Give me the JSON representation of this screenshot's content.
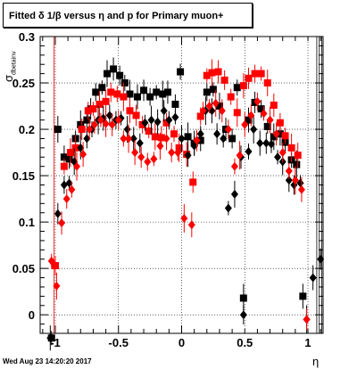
{
  "title": "Fitted δ 1/β versus η and p for Primary muon+",
  "footer": "Wed Aug 23 14:20:20 2017",
  "chart_data": {
    "type": "scatter",
    "title": "Fitted δ 1/β versus η and p for Primary muon+",
    "xlabel": "η",
    "ylabel": "σ_dbetainv",
    "xlim": [
      -1.12,
      1.12
    ],
    "ylim": [
      -0.02,
      0.3
    ],
    "xticks": [
      "-1",
      "-0.5",
      "0",
      "0.5",
      "1"
    ],
    "yticks": [
      "0",
      "0.05",
      "0.1",
      "0.15",
      "0.2",
      "0.25",
      "0.3"
    ],
    "grid": true,
    "legend": "none",
    "series": [
      {
        "marker": "square",
        "color": "#000000",
        "points": [
          [
            -1.03,
            -0.025
          ],
          [
            -0.98,
            0.2
          ],
          [
            -0.93,
            0.17
          ],
          [
            -0.89,
            0.168
          ],
          [
            -0.84,
            0.19
          ],
          [
            -0.8,
            0.205
          ],
          [
            -0.75,
            0.21
          ],
          [
            -0.72,
            0.222
          ],
          [
            -0.68,
            0.24
          ],
          [
            -0.63,
            0.245
          ],
          [
            -0.59,
            0.26
          ],
          [
            -0.54,
            0.265
          ],
          [
            -0.49,
            0.258
          ],
          [
            -0.45,
            0.25
          ],
          [
            -0.41,
            0.238
          ],
          [
            -0.35,
            0.235
          ],
          [
            -0.3,
            0.242
          ],
          [
            -0.25,
            0.235
          ],
          [
            -0.2,
            0.24
          ],
          [
            -0.15,
            0.238
          ],
          [
            -0.11,
            0.24
          ],
          [
            -0.05,
            0.227
          ],
          [
            -0.01,
            0.262
          ],
          [
            0.05,
            0.192
          ],
          [
            0.1,
            0.185
          ],
          [
            0.15,
            0.188
          ],
          [
            0.2,
            0.24
          ],
          [
            0.25,
            0.243
          ],
          [
            0.3,
            0.225
          ],
          [
            0.35,
            0.2
          ],
          [
            0.4,
            0.19
          ],
          [
            0.44,
            0.245
          ],
          [
            0.49,
            0.018
          ],
          [
            0.53,
            0.21
          ],
          [
            0.58,
            0.229
          ],
          [
            0.63,
            0.222
          ],
          [
            0.68,
            0.203
          ],
          [
            0.73,
            0.192
          ],
          [
            0.78,
            0.195
          ],
          [
            0.82,
            0.186
          ],
          [
            0.87,
            0.167
          ],
          [
            0.91,
            0.162
          ],
          [
            0.96,
            0.02
          ]
        ]
      },
      {
        "marker": "square",
        "color": "#ff0000",
        "points": [
          [
            -1.0,
            0.053
          ],
          [
            -0.93,
            0.16
          ],
          [
            -0.88,
            0.175
          ],
          [
            -0.84,
            0.18
          ],
          [
            -0.79,
            0.2
          ],
          [
            -0.74,
            0.22
          ],
          [
            -0.7,
            0.222
          ],
          [
            -0.65,
            0.227
          ],
          [
            -0.6,
            0.23
          ],
          [
            -0.56,
            0.24
          ],
          [
            -0.51,
            0.238
          ],
          [
            -0.46,
            0.235
          ],
          [
            -0.41,
            0.22
          ],
          [
            -0.36,
            0.215
          ],
          [
            -0.31,
            0.205
          ],
          [
            -0.26,
            0.198
          ],
          [
            -0.21,
            0.192
          ],
          [
            -0.16,
            0.191
          ],
          [
            -0.12,
            0.207
          ],
          [
            -0.06,
            0.195
          ],
          [
            -0.02,
            0.18
          ],
          [
            0.04,
            0.173
          ],
          [
            0.09,
            0.143
          ],
          [
            0.15,
            0.214
          ],
          [
            0.2,
            0.258
          ],
          [
            0.24,
            0.261
          ],
          [
            0.29,
            0.262
          ],
          [
            0.34,
            0.253
          ],
          [
            0.39,
            0.235
          ],
          [
            0.44,
            0.218
          ],
          [
            0.49,
            0.247
          ],
          [
            0.53,
            0.255
          ],
          [
            0.58,
            0.26
          ],
          [
            0.63,
            0.26
          ],
          [
            0.68,
            0.25
          ],
          [
            0.73,
            0.226
          ],
          [
            0.78,
            0.207
          ],
          [
            0.82,
            0.193
          ],
          [
            0.87,
            0.18
          ],
          [
            0.92,
            0.172
          ]
        ]
      },
      {
        "marker": "diamond",
        "color": "#000000",
        "points": [
          [
            -1.04,
            -0.025
          ],
          [
            -0.98,
            0.109
          ],
          [
            -0.93,
            0.14
          ],
          [
            -0.89,
            0.142
          ],
          [
            -0.85,
            0.165
          ],
          [
            -0.8,
            0.18
          ],
          [
            -0.75,
            0.19
          ],
          [
            -0.71,
            0.2
          ],
          [
            -0.66,
            0.21
          ],
          [
            -0.62,
            0.212
          ],
          [
            -0.57,
            0.215
          ],
          [
            -0.52,
            0.21
          ],
          [
            -0.48,
            0.212
          ],
          [
            -0.43,
            0.2
          ],
          [
            -0.38,
            0.19
          ],
          [
            -0.33,
            0.185
          ],
          [
            -0.29,
            0.207
          ],
          [
            -0.24,
            0.21
          ],
          [
            -0.19,
            0.208
          ],
          [
            -0.14,
            0.22
          ],
          [
            -0.1,
            0.21
          ],
          [
            -0.05,
            0.213
          ],
          [
            0.0,
            0.19
          ],
          [
            0.05,
            0.172
          ],
          [
            0.1,
            0.182
          ],
          [
            0.15,
            0.195
          ],
          [
            0.19,
            0.22
          ],
          [
            0.24,
            0.22
          ],
          [
            0.28,
            0.195
          ],
          [
            0.33,
            0.19
          ],
          [
            0.37,
            0.115
          ],
          [
            0.42,
            0.13
          ],
          [
            0.47,
            0.17
          ],
          [
            0.49,
            0.0
          ],
          [
            0.53,
            0.176
          ],
          [
            0.57,
            0.2
          ],
          [
            0.62,
            0.185
          ],
          [
            0.67,
            0.185
          ],
          [
            0.71,
            0.184
          ],
          [
            0.76,
            0.17
          ],
          [
            0.8,
            0.165
          ],
          [
            0.85,
            0.145
          ],
          [
            0.89,
            0.14
          ],
          [
            0.94,
            0.142
          ],
          [
            0.99,
            -0.005
          ],
          [
            1.04,
            0.04
          ],
          [
            1.1,
            0.06
          ]
        ]
      },
      {
        "marker": "diamond",
        "color": "#ff0000",
        "points": [
          [
            -1.03,
            0.058
          ],
          [
            -0.99,
            0.031
          ],
          [
            -0.95,
            0.099
          ],
          [
            -0.91,
            0.125
          ],
          [
            -0.87,
            0.135
          ],
          [
            -0.83,
            0.16
          ],
          [
            -0.78,
            0.173
          ],
          [
            -0.73,
            0.2
          ],
          [
            -0.69,
            0.205
          ],
          [
            -0.64,
            0.21
          ],
          [
            -0.6,
            0.206
          ],
          [
            -0.55,
            0.205
          ],
          [
            -0.5,
            0.21
          ],
          [
            -0.46,
            0.19
          ],
          [
            -0.42,
            0.19
          ],
          [
            -0.37,
            0.175
          ],
          [
            -0.32,
            0.17
          ],
          [
            -0.27,
            0.165
          ],
          [
            -0.22,
            0.168
          ],
          [
            -0.17,
            0.182
          ],
          [
            -0.12,
            0.19
          ],
          [
            -0.08,
            0.175
          ],
          [
            -0.03,
            0.175
          ],
          [
            0.02,
            0.104
          ],
          [
            0.08,
            0.097
          ],
          [
            0.12,
            0.188
          ],
          [
            0.17,
            0.22
          ],
          [
            0.22,
            0.225
          ],
          [
            0.27,
            0.228
          ],
          [
            0.32,
            0.22
          ],
          [
            0.37,
            0.2
          ],
          [
            0.42,
            0.16
          ],
          [
            0.46,
            0.172
          ],
          [
            0.5,
            0.205
          ],
          [
            0.55,
            0.215
          ],
          [
            0.6,
            0.23
          ],
          [
            0.65,
            0.217
          ],
          [
            0.7,
            0.21
          ],
          [
            0.75,
            0.195
          ],
          [
            0.8,
            0.175
          ],
          [
            0.85,
            0.155
          ],
          [
            0.9,
            0.145
          ],
          [
            0.95,
            0.135
          ],
          [
            0.99,
            -0.005
          ]
        ]
      }
    ]
  }
}
